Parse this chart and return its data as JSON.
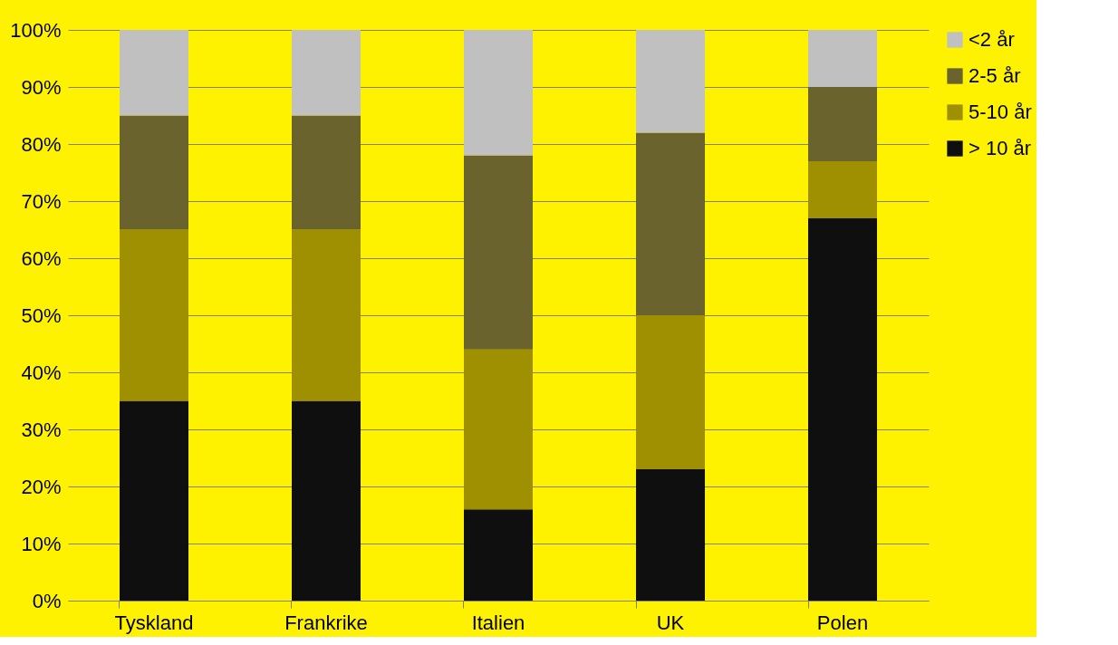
{
  "chart_data": {
    "type": "bar",
    "stacked": true,
    "categories": [
      "Tyskland",
      "Frankrike",
      "Italien",
      "UK",
      "Polen"
    ],
    "series": [
      {
        "name": "> 10 år",
        "color": "#0f0f0f",
        "values": [
          35,
          35,
          16,
          23,
          67
        ]
      },
      {
        "name": "5-10 år",
        "color": "#9e9000",
        "values": [
          30,
          30,
          28,
          27,
          10
        ]
      },
      {
        "name": "2-5 år",
        "color": "#6b632d",
        "values": [
          20,
          20,
          34,
          32,
          13
        ]
      },
      {
        "name": "<2 år",
        "color": "#c0c0c0",
        "values": [
          15,
          15,
          22,
          18,
          10
        ]
      }
    ],
    "ylim": [
      0,
      100
    ],
    "yticks": [
      {
        "value": 0,
        "label": "0%"
      },
      {
        "value": 10,
        "label": "10%"
      },
      {
        "value": 20,
        "label": "20%"
      },
      {
        "value": 30,
        "label": "30%"
      },
      {
        "value": 40,
        "label": "40%"
      },
      {
        "value": 50,
        "label": "50%"
      },
      {
        "value": 60,
        "label": "60%"
      },
      {
        "value": 70,
        "label": "70%"
      },
      {
        "value": 80,
        "label": "80%"
      },
      {
        "value": 90,
        "label": "90%"
      },
      {
        "value": 100,
        "label": "100%"
      }
    ],
    "grid": "y",
    "legend": "right"
  }
}
